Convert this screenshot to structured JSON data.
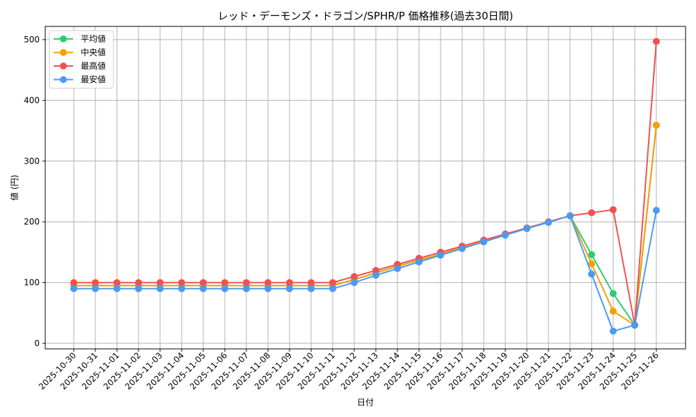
{
  "chart_data": {
    "type": "line",
    "title": "レッド・デーモンズ・ドラゴン/SPHR/P 価格推移(過去30日間)",
    "xlabel": "日付",
    "ylabel": "値 (円)",
    "ylim": [
      0,
      520
    ],
    "yticks": [
      0,
      100,
      200,
      300,
      400,
      500
    ],
    "grid": true,
    "legend_position": "upper left",
    "x": [
      "2025-10-30",
      "2025-10-31",
      "2025-11-01",
      "2025-11-02",
      "2025-11-03",
      "2025-11-04",
      "2025-11-05",
      "2025-11-06",
      "2025-11-07",
      "2025-11-08",
      "2025-11-09",
      "2025-11-10",
      "2025-11-11",
      "2025-11-12",
      "2025-11-13",
      "2025-11-14",
      "2025-11-15",
      "2025-11-16",
      "2025-11-17",
      "2025-11-18",
      "2025-11-19",
      "2025-11-20",
      "2025-11-21",
      "2025-11-22",
      "2025-11-23",
      "2025-11-24",
      "2025-11-25",
      "2025-11-26"
    ],
    "series": [
      {
        "name": "平均値",
        "color": "#2ecc71",
        "values": [
          95,
          95,
          95,
          95,
          95,
          95,
          95,
          95,
          95,
          95,
          95,
          95,
          95,
          105,
          116,
          127,
          137,
          147,
          158,
          168,
          179,
          189,
          200,
          210,
          146,
          82,
          30,
          359
        ]
      },
      {
        "name": "中央値",
        "color": "#f5a000",
        "values": [
          95,
          95,
          95,
          95,
          95,
          95,
          95,
          95,
          95,
          95,
          95,
          95,
          95,
          105,
          116,
          127,
          137,
          147,
          158,
          168,
          179,
          189,
          200,
          210,
          131,
          53,
          30,
          359
        ]
      },
      {
        "name": "最高値",
        "color": "#f05050",
        "values": [
          100,
          100,
          100,
          100,
          100,
          100,
          100,
          100,
          100,
          100,
          100,
          100,
          100,
          110,
          120,
          130,
          140,
          150,
          160,
          170,
          180,
          190,
          200,
          210,
          215,
          220,
          30,
          497
        ]
      },
      {
        "name": "最安値",
        "color": "#4a9af5",
        "values": [
          90,
          90,
          90,
          90,
          90,
          90,
          90,
          90,
          90,
          90,
          90,
          90,
          90,
          100,
          112,
          123,
          134,
          145,
          156,
          167,
          178,
          189,
          199,
          210,
          114,
          20,
          30,
          219
        ]
      }
    ]
  }
}
